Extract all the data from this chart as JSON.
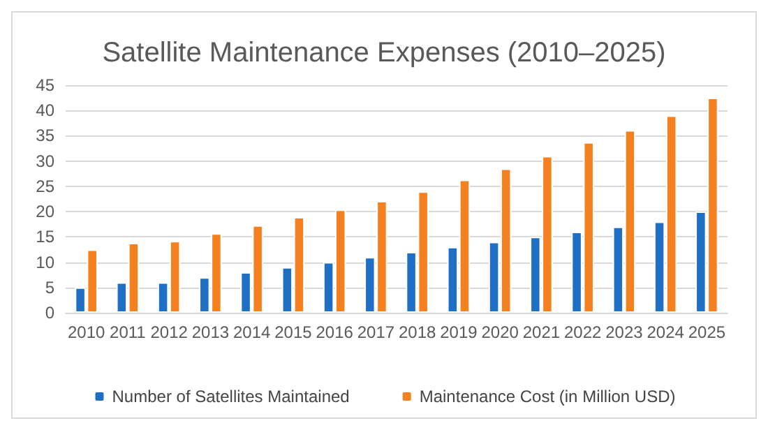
{
  "chart_data": {
    "type": "bar",
    "title": "Satellite Maintenance Expenses (2010–2025)",
    "categories": [
      "2010",
      "2011",
      "2012",
      "2013",
      "2014",
      "2015",
      "2016",
      "2017",
      "2018",
      "2019",
      "2020",
      "2021",
      "2022",
      "2023",
      "2024",
      "2025"
    ],
    "series": [
      {
        "name": "Number of Satellites Maintained",
        "color": "#1f6fc5",
        "values": [
          5,
          6,
          6,
          7,
          8,
          9,
          10,
          11,
          12,
          13,
          14,
          15,
          16,
          17,
          18,
          20
        ]
      },
      {
        "name": "Maintenance Cost (in Million USD)",
        "color": "#f5801f",
        "values": [
          12.5,
          13.8,
          14.2,
          15.7,
          17.3,
          18.9,
          20.4,
          22.1,
          24.0,
          26.3,
          28.5,
          31.0,
          33.7,
          36.1,
          39.0,
          42.5
        ]
      }
    ],
    "ylim": [
      0,
      45
    ],
    "yticks": [
      0,
      5,
      10,
      15,
      20,
      25,
      30,
      35,
      40,
      45
    ],
    "grid": "y",
    "legend": "bottom"
  }
}
